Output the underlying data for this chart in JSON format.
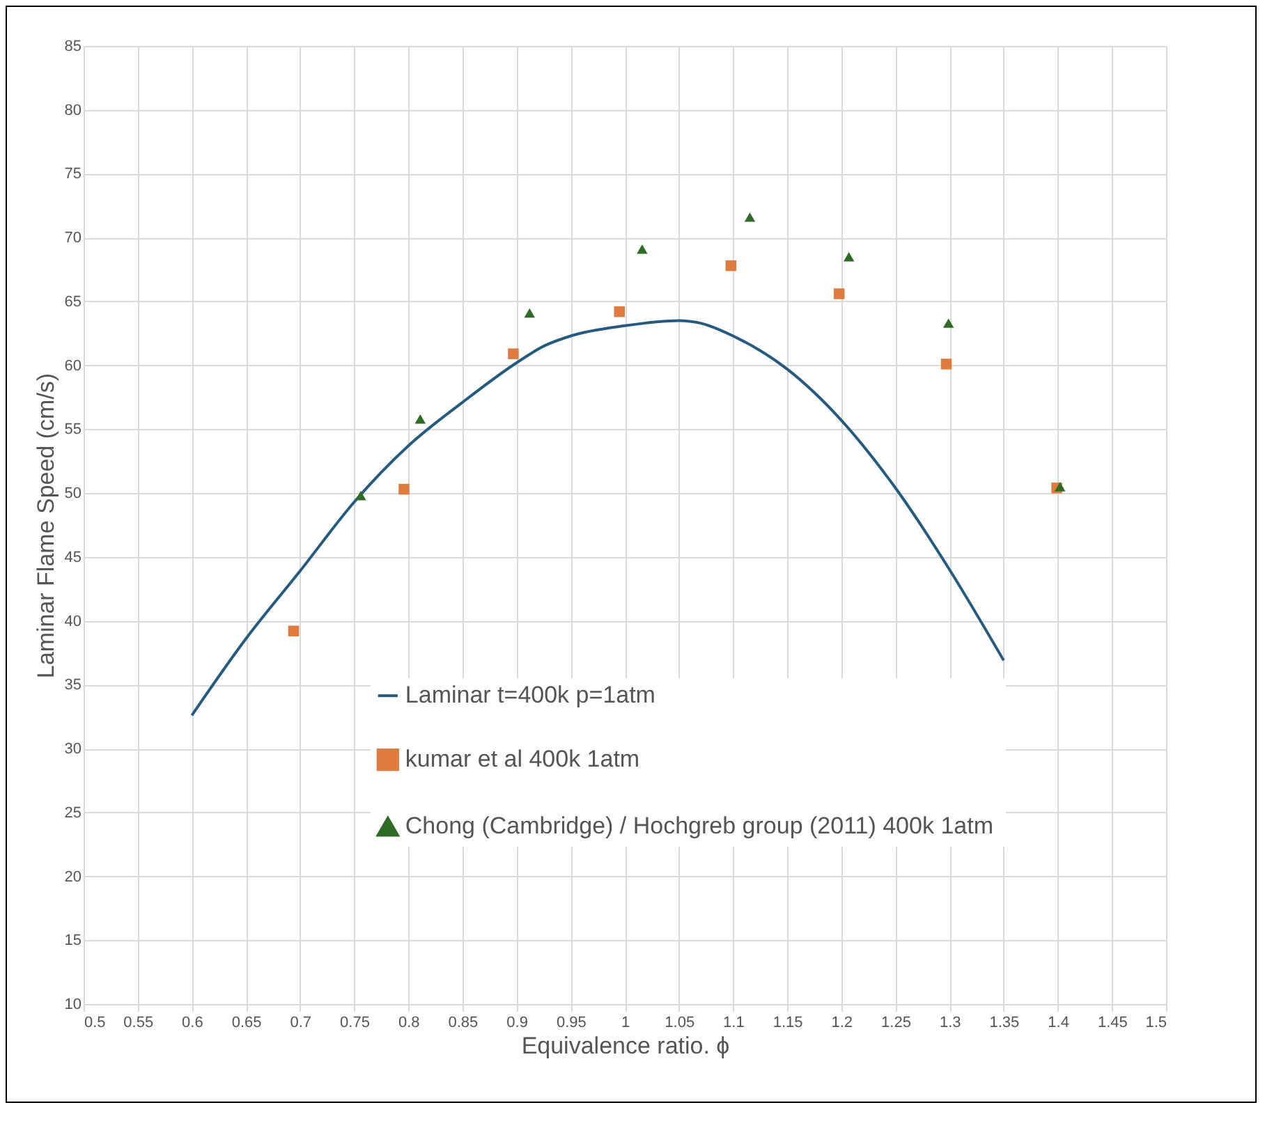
{
  "chart_data": {
    "type": "line",
    "xlabel": "Equivalence ratio. ϕ",
    "ylabel": "Laminar Flame Speed (cm/s)",
    "xlim": [
      0.5,
      1.5
    ],
    "xticks": [
      0.5,
      0.55,
      0.6,
      0.65,
      0.7,
      0.75,
      0.8,
      0.85,
      0.9,
      0.95,
      1,
      1.05,
      1.1,
      1.15,
      1.2,
      1.25,
      1.3,
      1.35,
      1.4,
      1.45,
      1.5
    ],
    "ylim": [
      10,
      85
    ],
    "yticks": [
      10,
      15,
      20,
      25,
      30,
      35,
      40,
      45,
      50,
      55,
      60,
      65,
      70,
      75,
      80,
      85
    ],
    "grid": true,
    "legend": "bottom",
    "series": [
      {
        "name": "Laminar t=400k p=1atm",
        "color": "#245b7e",
        "marker": "none",
        "x": [
          0.6,
          0.65,
          0.7,
          0.75,
          0.8,
          0.85,
          0.9,
          0.925,
          0.95,
          1.0,
          1.05,
          1.07,
          1.1,
          1.15,
          1.2,
          1.25,
          1.3,
          1.35
        ],
        "values": [
          32.6,
          38.6,
          43.9,
          49.3,
          53.7,
          57.1,
          60.2,
          61.5,
          62.3,
          63.1,
          63.5,
          63.3,
          62.3,
          59.7,
          55.7,
          50.4,
          44.0,
          36.9
        ]
      },
      {
        "name": "kumar et al 400k 1atm",
        "type": "scatter",
        "color": "#e07b3f",
        "marker": "square",
        "x": [
          0.694,
          0.796,
          0.897,
          0.995,
          1.098,
          1.198,
          1.297,
          1.399
        ],
        "values": [
          39.2,
          50.3,
          60.9,
          64.2,
          67.8,
          65.6,
          60.1,
          50.4
        ]
      },
      {
        "name": "Chong (Cambridge)  / Hochgreb group (2011) 400k 1atm",
        "type": "scatter",
        "color": "#2e6b24",
        "marker": "triangle",
        "x": [
          0.756,
          0.811,
          0.912,
          1.016,
          1.1155,
          1.207,
          1.299,
          1.402
        ],
        "values": [
          49.8,
          55.8,
          64.1,
          69.1,
          71.6,
          68.5,
          63.3,
          50.5
        ]
      }
    ]
  }
}
